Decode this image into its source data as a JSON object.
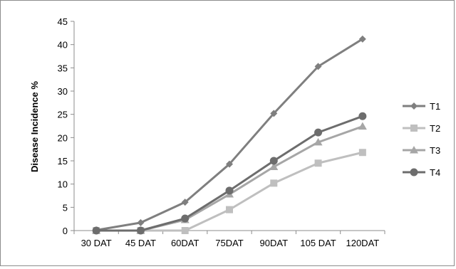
{
  "chart_data": {
    "type": "line",
    "title": "",
    "xlabel": "",
    "ylabel": "Disease Incidence %",
    "categories": [
      "30 DAT",
      "45 DAT",
      "60DAT",
      "75DAT",
      "90DAT",
      "105 DAT",
      "120DAT"
    ],
    "ylim": [
      0,
      45
    ],
    "yticks": [
      "0",
      "5",
      "10",
      "15",
      "20",
      "25",
      "30",
      "35",
      "40",
      "45"
    ],
    "grid": false,
    "legend_position": "right",
    "series": [
      {
        "name": "T1",
        "values": [
          0.1,
          1.7,
          6.1,
          14.3,
          25.2,
          35.3,
          41.2
        ],
        "color": "#7f7f7f",
        "marker": "diamond"
      },
      {
        "name": "T2",
        "values": [
          0.0,
          0.0,
          0.0,
          4.5,
          10.2,
          14.5,
          16.8
        ],
        "color": "#bfbfbf",
        "marker": "square"
      },
      {
        "name": "T3",
        "values": [
          0.0,
          0.0,
          2.3,
          7.8,
          13.7,
          19.0,
          22.4
        ],
        "color": "#a6a6a6",
        "marker": "triangle"
      },
      {
        "name": "T4",
        "values": [
          0.0,
          0.0,
          2.6,
          8.6,
          15.0,
          21.1,
          24.6
        ],
        "color": "#6d6d6d",
        "marker": "circle"
      }
    ]
  }
}
